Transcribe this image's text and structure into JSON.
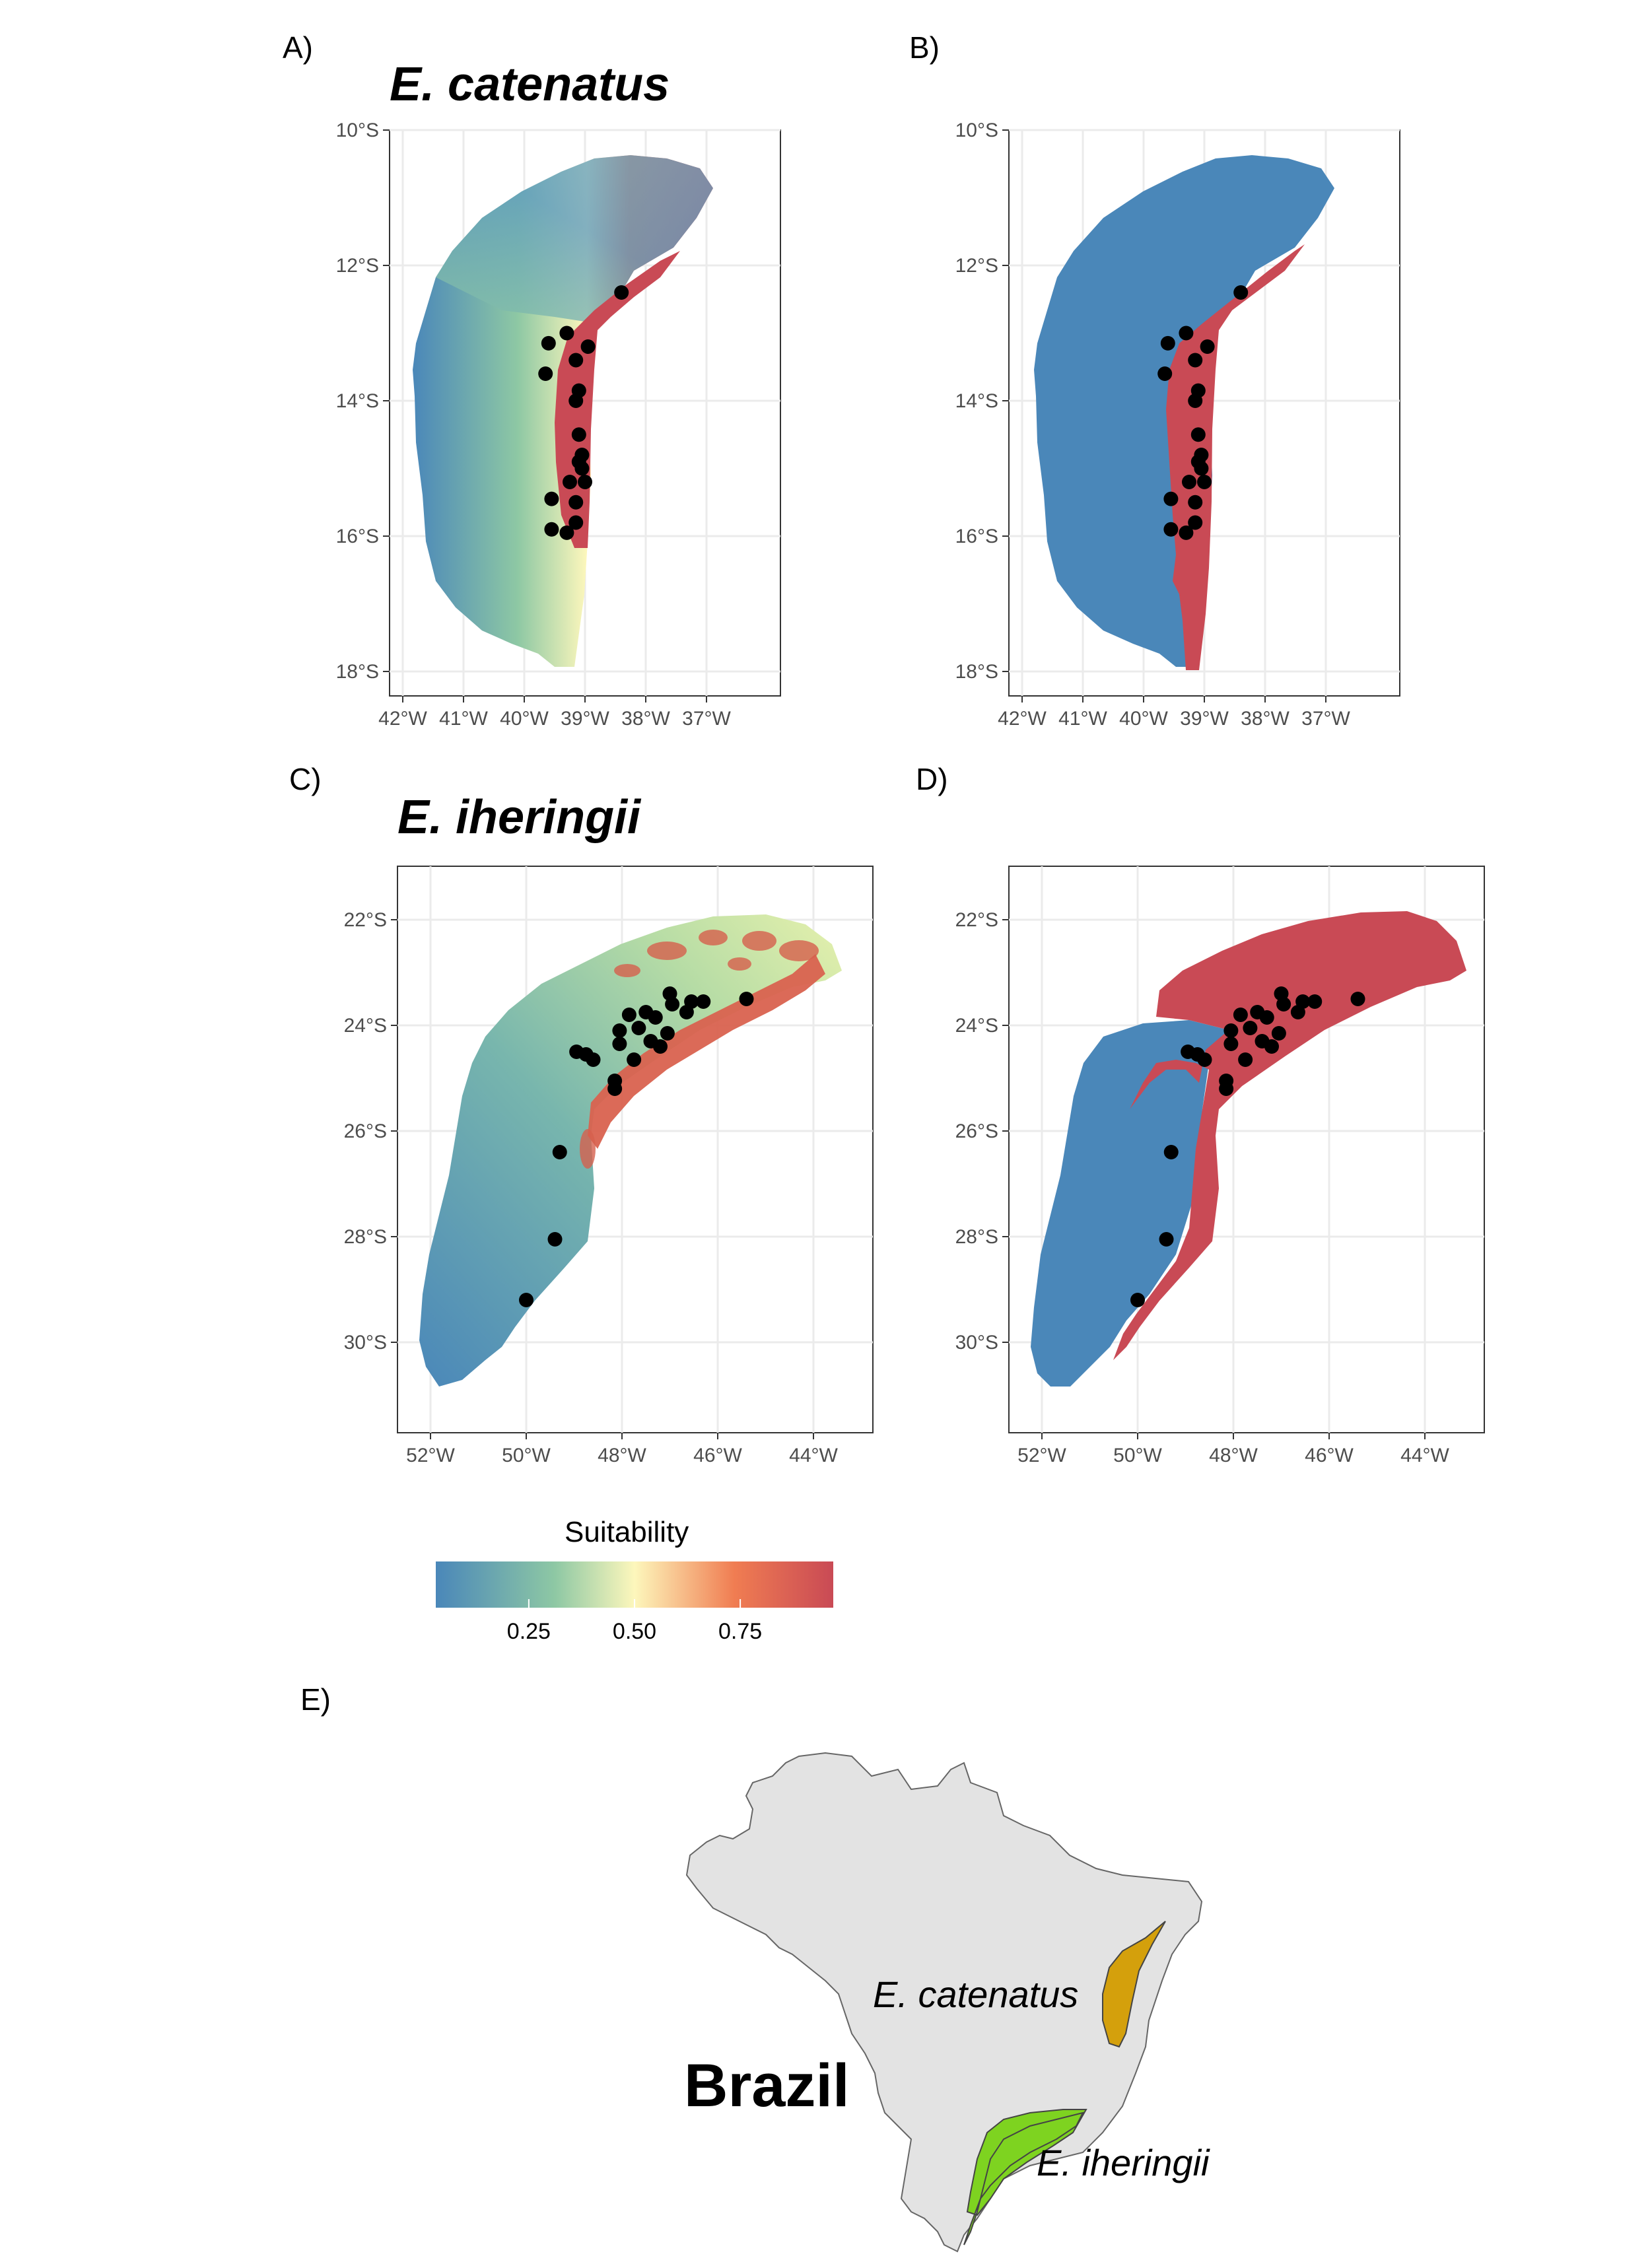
{
  "panels": [
    {
      "id": "A",
      "letter": "A)",
      "title": "E. catenatus",
      "y_ticks": [
        "10°S",
        "12°S",
        "14°S",
        "16°S",
        "18°S"
      ],
      "x_ticks": [
        "42°W",
        "41°W",
        "40°W",
        "39°W",
        "38°W",
        "37°W"
      ]
    },
    {
      "id": "B",
      "letter": "B)",
      "title": "",
      "y_ticks": [
        "10°S",
        "12°S",
        "14°S",
        "16°S",
        "18°S"
      ],
      "x_ticks": [
        "42°W",
        "41°W",
        "40°W",
        "39°W",
        "38°W",
        "37°W"
      ]
    },
    {
      "id": "C",
      "letter": "C)",
      "title": "E. iheringii",
      "y_ticks": [
        "22°S",
        "24°S",
        "26°S",
        "28°S",
        "30°S"
      ],
      "x_ticks": [
        "52°W",
        "50°W",
        "48°W",
        "46°W",
        "44°W"
      ]
    },
    {
      "id": "D",
      "letter": "D)",
      "title": "",
      "y_ticks": [
        "22°S",
        "24°S",
        "26°S",
        "28°S",
        "30°S"
      ],
      "x_ticks": [
        "52°W",
        "50°W",
        "48°W",
        "46°W",
        "44°W"
      ]
    }
  ],
  "legend": {
    "title": "Suitability",
    "ticks": [
      "0.25",
      "0.50",
      "0.75"
    ],
    "tick_values": [
      0.25,
      0.5,
      0.75
    ],
    "range": [
      0.03,
      0.97
    ],
    "colors": [
      "#4a87b9",
      "#8ec8a4",
      "#fdf7bc",
      "#f07d52",
      "#c94a55"
    ]
  },
  "panel_e": {
    "letter": "E)",
    "country": "Brazil",
    "regions": [
      {
        "name": "E. catenatus",
        "color": "#d4a00c"
      },
      {
        "name": "E. iheringii",
        "color": "#7ed320"
      }
    ],
    "land_color": "#e3e3e3"
  },
  "binary_colors": {
    "unsuitable": "#4a87b9",
    "suitable": "#c94a55"
  },
  "occurrences": {
    "catenatus": [
      [
        -38.4,
        -12.4
      ],
      [
        -39.3,
        -13.0
      ],
      [
        -39.6,
        -13.15
      ],
      [
        -38.95,
        -13.2
      ],
      [
        -39.15,
        -13.4
      ],
      [
        -39.65,
        -13.6
      ],
      [
        -39.1,
        -13.85
      ],
      [
        -39.15,
        -14.0
      ],
      [
        -39.1,
        -14.5
      ],
      [
        -39.05,
        -14.8
      ],
      [
        -39.1,
        -14.9
      ],
      [
        -39.05,
        -15.0
      ],
      [
        -39.25,
        -15.2
      ],
      [
        -39.0,
        -15.2
      ],
      [
        -39.55,
        -15.45
      ],
      [
        -39.15,
        -15.5
      ],
      [
        -39.15,
        -15.8
      ],
      [
        -39.55,
        -15.9
      ],
      [
        -39.3,
        -15.95
      ]
    ],
    "iheringii": [
      [
        -45.4,
        -23.5
      ],
      [
        -46.3,
        -23.55
      ],
      [
        -46.55,
        -23.55
      ],
      [
        -46.65,
        -23.75
      ],
      [
        -46.95,
        -23.6
      ],
      [
        -47.0,
        -23.4
      ],
      [
        -47.3,
        -23.85
      ],
      [
        -47.5,
        -23.75
      ],
      [
        -47.65,
        -24.05
      ],
      [
        -47.85,
        -23.8
      ],
      [
        -48.05,
        -24.1
      ],
      [
        -47.05,
        -24.15
      ],
      [
        -47.4,
        -24.3
      ],
      [
        -47.2,
        -24.4
      ],
      [
        -48.05,
        -24.35
      ],
      [
        -47.75,
        -24.65
      ],
      [
        -48.95,
        -24.5
      ],
      [
        -48.75,
        -24.55
      ],
      [
        -48.6,
        -24.65
      ],
      [
        -48.15,
        -25.05
      ],
      [
        -48.15,
        -25.2
      ],
      [
        -49.3,
        -26.4
      ],
      [
        -49.4,
        -28.05
      ],
      [
        -50.0,
        -29.2
      ]
    ]
  }
}
